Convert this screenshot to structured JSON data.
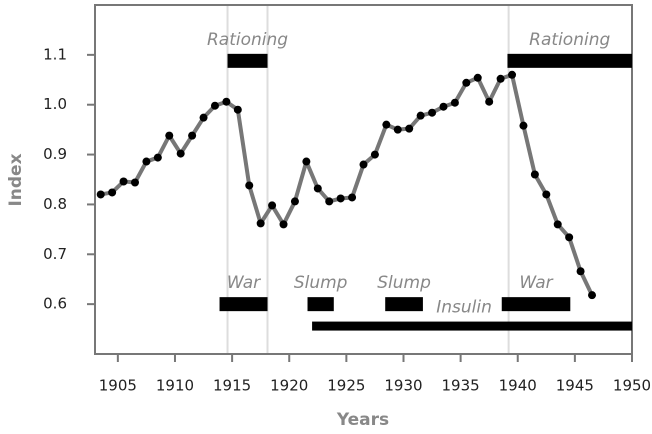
{
  "chart_data": {
    "type": "line",
    "x_label": "Years",
    "y_label": "Index",
    "x": [
      1903.5,
      1904.5,
      1905.5,
      1906.5,
      1907.5,
      1908.5,
      1909.5,
      1910.5,
      1911.5,
      1912.5,
      1913.5,
      1914.5,
      1915.5,
      1916.5,
      1917.5,
      1918.5,
      1919.5,
      1920.5,
      1921.5,
      1922.5,
      1923.5,
      1924.5,
      1925.5,
      1926.5,
      1927.5,
      1928.5,
      1929.5,
      1930.5,
      1931.5,
      1932.5,
      1933.5,
      1934.5,
      1935.5,
      1936.5,
      1937.5,
      1938.5,
      1939.5,
      1940.5,
      1941.5,
      1942.5,
      1943.5,
      1944.5,
      1945.5,
      1946.5
    ],
    "series": [
      {
        "color": "#777777",
        "marker_color": "#000000",
        "values": [
          0.82,
          0.824,
          0.846,
          0.844,
          0.886,
          0.894,
          0.938,
          0.902,
          0.938,
          0.974,
          0.998,
          1.006,
          0.99,
          0.838,
          0.762,
          0.798,
          0.76,
          0.806,
          0.886,
          0.832,
          0.806,
          0.812,
          0.814,
          0.88,
          0.9,
          0.96,
          0.95,
          0.952,
          0.978,
          0.984,
          0.996,
          1.004,
          1.044,
          1.054,
          1.006,
          1.052,
          1.06,
          0.958,
          0.86,
          0.82,
          0.76,
          0.734,
          0.666,
          0.618
        ]
      }
    ],
    "periods": [
      {
        "label": "Rationing",
        "start": 1914.6,
        "end": 1918.1,
        "y": 1.088
      },
      {
        "label": "Rationing",
        "start": 1939.1,
        "end": 1950,
        "y": 1.088
      },
      {
        "label": "War",
        "start": 1913.9,
        "end": 1918.1,
        "y": 0.6
      },
      {
        "label": "Slump",
        "start": 1921.6,
        "end": 1923.9,
        "y": 0.6
      },
      {
        "label": "Slump",
        "start": 1928.4,
        "end": 1931.7,
        "y": 0.6
      },
      {
        "label": "War",
        "start": 1938.6,
        "end": 1944.6,
        "y": 0.6
      },
      {
        "label": "Insulin",
        "start": 1922,
        "end": 1950,
        "y": 0.556
      }
    ],
    "reference_lines": [
      1914.6,
      1918.1,
      1939.2
    ],
    "xlim": [
      1903,
      1950
    ],
    "ylim": [
      0.5,
      1.2
    ],
    "xticks": [
      1905,
      1910,
      1915,
      1920,
      1925,
      1930,
      1935,
      1940,
      1945,
      1950
    ],
    "yticks": [
      0.6,
      0.7,
      0.8,
      0.9,
      {
        "value": 1,
        "label": "1.0"
      },
      1.1
    ]
  }
}
